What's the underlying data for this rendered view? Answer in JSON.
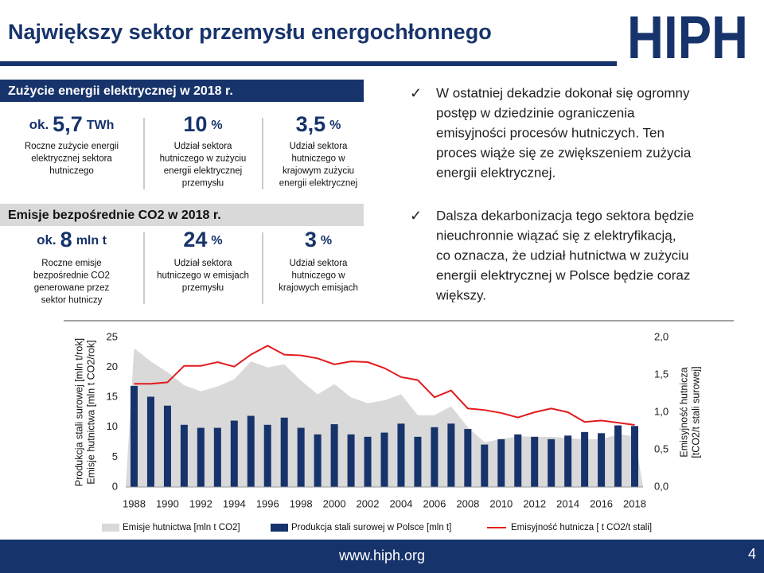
{
  "header": {
    "title": "Największy sektor przemysłu energochłonnego",
    "logo": "HIPH"
  },
  "sections": [
    {
      "heading": "Zużycie energii elektrycznej w 2018 r.",
      "stats": [
        {
          "prefix": "ok.",
          "value": "5,7",
          "unit": "TWh",
          "desc": [
            "Roczne zużycie energii",
            "elektrycznej sektora",
            "hutniczego"
          ]
        },
        {
          "value": "10",
          "unit": "%",
          "desc": [
            "Udział sektora",
            "hutniczego w zużyciu",
            "energii elektrycznej",
            "przemysłu"
          ]
        },
        {
          "value": "3,5",
          "unit": "%",
          "desc": [
            "Udział sektora",
            "hutniczego w",
            "krajowym zużyciu",
            "energii elektrycznej"
          ]
        }
      ]
    },
    {
      "heading": "Emisje bezpośrednie CO2 w 2018 r.",
      "stats": [
        {
          "prefix": "ok.",
          "value": "8",
          "unit": "mln t",
          "desc": [
            "Roczne emisje",
            "bezpośrednie CO2",
            "generowane przez",
            "sektor hutniczy"
          ]
        },
        {
          "value": "24",
          "unit": "%",
          "desc": [
            "Udział sektora",
            "hutniczego w emisjach",
            "przemysłu"
          ]
        },
        {
          "value": "3",
          "unit": "%",
          "desc": [
            "Udział sektora",
            "hutniczego w",
            "krajowych emisjach"
          ]
        }
      ]
    }
  ],
  "bullets": [
    [
      "W ostatniej dekadzie dokonał się ogromny",
      "postęp w dziedzinie ograniczenia",
      "emisyjności procesów hutniczych. Ten",
      "proces wiąże się ze zwiększeniem zużycia",
      "energii elektrycznej."
    ],
    [
      "Dalsza dekarbonizacja tego sektora będzie",
      "nieuchronnie wiązać się z elektryfikacją,",
      "co oznacza, że udział hutnictwa w zużyciu",
      "energii elektrycznej w Polsce będzie coraz",
      "większy."
    ]
  ],
  "chart_data": {
    "type": "combo",
    "categories": [
      "1988",
      null,
      "1990",
      null,
      "1992",
      null,
      "1994",
      null,
      "1996",
      null,
      "1998",
      null,
      "2000",
      null,
      "2002",
      null,
      "2004",
      null,
      "2006",
      null,
      "2008",
      null,
      "2010",
      null,
      "2012",
      null,
      "2014",
      null,
      "2016",
      null,
      "2018"
    ],
    "ylabel": [
      "Produkcja stali surowej [mln t/rok]",
      "Emisje hutnictwa [mln t CO2/rok]"
    ],
    "y2label": [
      "Emisyjność hutnicza",
      "[tCO2/t stali surowej]"
    ],
    "ylim": [
      0,
      25
    ],
    "yticks": [
      0,
      5,
      10,
      15,
      20,
      25
    ],
    "y2lim": [
      0,
      2
    ],
    "y2ticks": [
      {
        "value": 0,
        "label": "0,0"
      },
      {
        "value": 0.5,
        "label": "0,5"
      },
      {
        "value": 1,
        "label": "1,0"
      },
      {
        "value": 1.5,
        "label": "1,5"
      },
      {
        "value": 2,
        "label": "2,0"
      }
    ],
    "series": [
      {
        "name": "Emisje hutnictwa [mln t CO2]",
        "kind": "area",
        "color": "#d9d9d9",
        "values": [
          23.2,
          21.0,
          19.2,
          17.0,
          16.0,
          16.8,
          18.0,
          21.0,
          20.0,
          20.5,
          17.8,
          15.5,
          17.2,
          15.0,
          14.0,
          14.5,
          15.5,
          12.0,
          12.0,
          13.5,
          10.0,
          7.5,
          8.0,
          8.5,
          8.4,
          8.4,
          8.2,
          8.0,
          8.0,
          8.8,
          8.5
        ]
      },
      {
        "name": "Produkcja stali surowej w Polsce [mln t]",
        "kind": "bar",
        "color": "#17336b",
        "values": [
          16.9,
          15.1,
          13.6,
          10.4,
          9.9,
          9.9,
          11.1,
          11.9,
          10.4,
          11.6,
          9.9,
          8.8,
          10.5,
          8.8,
          8.4,
          9.1,
          10.6,
          8.4,
          10.0,
          10.6,
          9.7,
          7.1,
          8.0,
          8.8,
          8.4,
          8.0,
          8.6,
          9.2,
          9.0,
          10.3,
          10.2
        ]
      },
      {
        "name": "Emisyjność hutnicza [ t CO2/t stali]",
        "kind": "line",
        "color": "#e31a1c",
        "axis": "y2",
        "values": [
          1.38,
          1.38,
          1.4,
          1.62,
          1.62,
          1.67,
          1.61,
          1.77,
          1.89,
          1.77,
          1.76,
          1.72,
          1.64,
          1.68,
          1.67,
          1.59,
          1.47,
          1.43,
          1.2,
          1.29,
          1.05,
          1.03,
          0.99,
          0.93,
          1.0,
          1.05,
          1.0,
          0.87,
          0.89,
          0.86,
          0.83
        ]
      }
    ]
  },
  "footer": {
    "url": "www.hiph.org",
    "page": "4"
  }
}
